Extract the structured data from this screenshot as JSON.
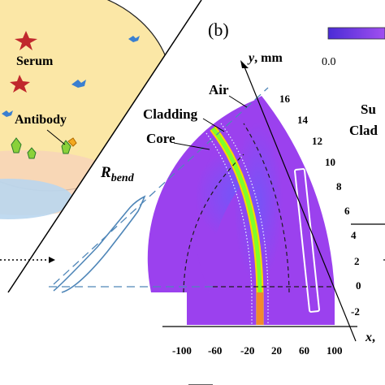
{
  "panel_label": "(b)",
  "left_panel": {
    "serum_label": "Serum",
    "antibody_label": "Antibody"
  },
  "colorbar": {
    "min_label": "0.0",
    "colors": [
      "#4a2bd6",
      "#a14ff0"
    ]
  },
  "labels": {
    "air": "Air",
    "cladding": "Cladding",
    "core": "Core",
    "r_bend_main": "R",
    "r_bend_sub": "bend",
    "substrate_partial_1": "Su",
    "substrate_partial_2": "Clad"
  },
  "axes": {
    "y_axis_var": "y",
    "y_axis_unit": ", mm",
    "x_axis_var": "x",
    "x_axis_unit": ",",
    "y_ticks": [
      "16",
      "14",
      "12",
      "10",
      "8",
      "6",
      "4",
      "2",
      "0",
      "-2"
    ],
    "x_ticks": [
      "-100",
      "-60",
      "-20",
      "20",
      "60",
      "100"
    ]
  },
  "colors": {
    "cladding_fill": "#9b41ee",
    "core_field": "#7fff2a",
    "core_edge": "#ffd400",
    "ellipse_fill": "#fbe7a6",
    "guide_line": "#4f86b8"
  }
}
